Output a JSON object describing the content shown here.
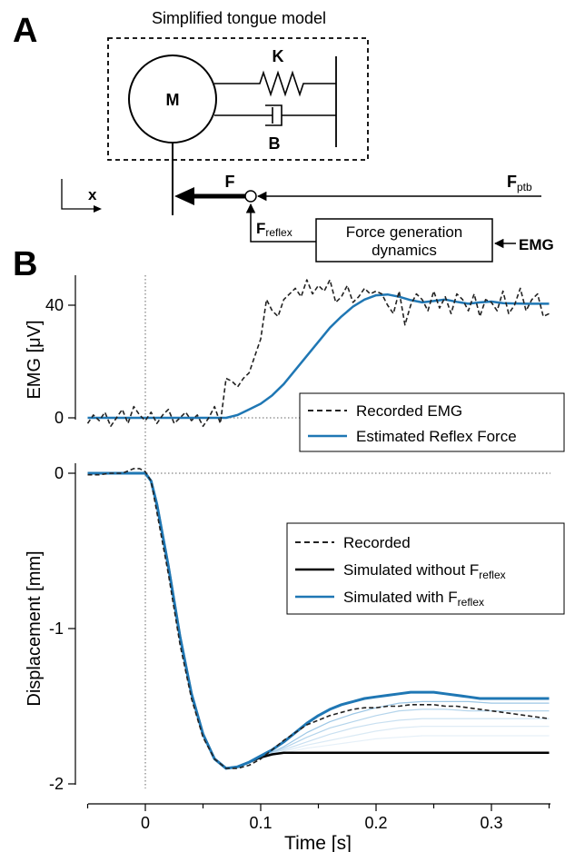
{
  "panel_a": {
    "letter": "A",
    "model_title": "Simplified tongue model",
    "mass_label": "M",
    "spring_label": "K",
    "damper_label": "B",
    "force_label": "F",
    "force_ptb_main": "F",
    "force_ptb_sub": "ptb",
    "force_reflex_main": "F",
    "force_reflex_sub": "reflex",
    "box_line1": "Force generation",
    "box_line2": "dynamics",
    "emg_input": "EMG",
    "axis_label": "x"
  },
  "panel_b": {
    "letter": "B"
  },
  "chart_data": [
    {
      "type": "line",
      "ylabel": "EMG [μV]",
      "yticks": [
        "0",
        "40"
      ],
      "xlim": [
        -0.05,
        0.35
      ],
      "ylim": [
        -6,
        50
      ],
      "legend": {
        "placement": "bottom-right",
        "entries": [
          {
            "label": "Recorded EMG",
            "style": "dashed",
            "color": "#222222"
          },
          {
            "label": "Estimated Reflex Force",
            "style": "solid",
            "color": "#1f77b4"
          }
        ]
      },
      "series": [
        {
          "name": "Recorded EMG",
          "x": [
            -0.05,
            -0.045,
            -0.04,
            -0.035,
            -0.03,
            -0.025,
            -0.02,
            -0.015,
            -0.01,
            -0.005,
            0,
            0.005,
            0.01,
            0.015,
            0.02,
            0.025,
            0.03,
            0.035,
            0.04,
            0.045,
            0.05,
            0.055,
            0.06,
            0.065,
            0.07,
            0.075,
            0.08,
            0.085,
            0.09,
            0.095,
            0.1,
            0.105,
            0.11,
            0.115,
            0.12,
            0.125,
            0.13,
            0.135,
            0.14,
            0.145,
            0.15,
            0.155,
            0.16,
            0.165,
            0.17,
            0.175,
            0.18,
            0.185,
            0.19,
            0.195,
            0.2,
            0.205,
            0.21,
            0.215,
            0.22,
            0.225,
            0.23,
            0.235,
            0.24,
            0.245,
            0.25,
            0.255,
            0.26,
            0.265,
            0.27,
            0.275,
            0.28,
            0.285,
            0.29,
            0.295,
            0.3,
            0.305,
            0.31,
            0.315,
            0.32,
            0.325,
            0.33,
            0.335,
            0.34,
            0.345,
            0.35
          ],
          "values": [
            -2,
            1,
            -1,
            2,
            -3,
            0,
            3,
            -2,
            4,
            1,
            -1,
            2,
            -2,
            1,
            3,
            -2,
            0,
            2,
            -1,
            1,
            -3,
            0,
            4,
            -2,
            14,
            13,
            11,
            14,
            16,
            22,
            28,
            42,
            38,
            36,
            42,
            44,
            46,
            43,
            49,
            44,
            47,
            45,
            49,
            41,
            43,
            47,
            41,
            43,
            46,
            44,
            45,
            44,
            40,
            37,
            45,
            33,
            40,
            44,
            42,
            38,
            45,
            39,
            43,
            37,
            44,
            42,
            38,
            44,
            36,
            42,
            41,
            38,
            45,
            37,
            40,
            46,
            38,
            42,
            44,
            36,
            37
          ]
        },
        {
          "name": "Estimated Reflex Force",
          "x": [
            -0.05,
            -0.03,
            -0.01,
            0,
            0.02,
            0.04,
            0.05,
            0.06,
            0.07,
            0.08,
            0.09,
            0.1,
            0.11,
            0.12,
            0.13,
            0.14,
            0.15,
            0.16,
            0.17,
            0.18,
            0.19,
            0.2,
            0.21,
            0.22,
            0.23,
            0.24,
            0.25,
            0.26,
            0.27,
            0.28,
            0.29,
            0.3,
            0.31,
            0.32,
            0.33,
            0.34,
            0.35
          ],
          "values": [
            0,
            0,
            0,
            0,
            0,
            0,
            0,
            0,
            0,
            1,
            3,
            5,
            8,
            12,
            17,
            22,
            27,
            32,
            36,
            39.5,
            42,
            43.5,
            43.8,
            43,
            41.8,
            41,
            41.5,
            42,
            41.2,
            40.5,
            41,
            41.3,
            40.7,
            40.6,
            40.5,
            40.5,
            40.5
          ]
        }
      ],
      "reference_line": {
        "y": 0,
        "style": "dotted"
      }
    },
    {
      "type": "line",
      "xlabel": "Time [s]",
      "ylabel": "Displacement [mm]",
      "xticks": [
        "0",
        "0.1",
        "0.2",
        "0.3"
      ],
      "yticks": [
        "0",
        "-1",
        "-2"
      ],
      "xlim": [
        -0.05,
        0.35
      ],
      "ylim": [
        -2.0,
        0.05
      ],
      "legend": {
        "placement": "top-right",
        "entries": [
          {
            "label": "Recorded",
            "style": "dashed",
            "color": "#222222"
          },
          {
            "label": "Simulated without F",
            "sub": "reflex",
            "style": "solid",
            "color": "#000000"
          },
          {
            "label": "Simulated with F",
            "sub": "reflex",
            "style": "solid",
            "color": "#1f77b4"
          }
        ]
      },
      "series": [
        {
          "name": "Recorded",
          "x": [
            -0.05,
            -0.04,
            -0.03,
            -0.02,
            -0.01,
            -0.005,
            0,
            0.005,
            0.01,
            0.02,
            0.03,
            0.04,
            0.05,
            0.06,
            0.07,
            0.08,
            0.09,
            0.1,
            0.11,
            0.12,
            0.13,
            0.14,
            0.15,
            0.16,
            0.17,
            0.18,
            0.19,
            0.2,
            0.21,
            0.22,
            0.23,
            0.24,
            0.25,
            0.26,
            0.27,
            0.28,
            0.29,
            0.3,
            0.31,
            0.32,
            0.33,
            0.34,
            0.35
          ],
          "values": [
            -0.01,
            -0.01,
            0,
            0,
            0.03,
            0.03,
            0.01,
            -0.05,
            -0.25,
            -0.65,
            -1.1,
            -1.45,
            -1.7,
            -1.84,
            -1.9,
            -1.9,
            -1.88,
            -1.84,
            -1.78,
            -1.72,
            -1.67,
            -1.62,
            -1.59,
            -1.56,
            -1.54,
            -1.52,
            -1.51,
            -1.51,
            -1.5,
            -1.5,
            -1.49,
            -1.49,
            -1.49,
            -1.5,
            -1.5,
            -1.51,
            -1.52,
            -1.53,
            -1.54,
            -1.55,
            -1.56,
            -1.57,
            -1.58
          ]
        },
        {
          "name": "Simulated without Freflex",
          "x": [
            -0.05,
            -0.02,
            0,
            0.005,
            0.01,
            0.02,
            0.03,
            0.04,
            0.05,
            0.06,
            0.07,
            0.08,
            0.09,
            0.1,
            0.11,
            0.12,
            0.13,
            0.14,
            0.15,
            0.2,
            0.25,
            0.3,
            0.35
          ],
          "values": [
            0,
            0,
            0,
            -0.05,
            -0.2,
            -0.6,
            -1.05,
            -1.42,
            -1.68,
            -1.84,
            -1.9,
            -1.89,
            -1.86,
            -1.83,
            -1.81,
            -1.8,
            -1.8,
            -1.8,
            -1.8,
            -1.8,
            -1.8,
            -1.8,
            -1.8
          ]
        },
        {
          "name": "Simulated with Freflex",
          "x": [
            -0.05,
            -0.02,
            0,
            0.005,
            0.01,
            0.02,
            0.03,
            0.04,
            0.05,
            0.06,
            0.07,
            0.08,
            0.09,
            0.1,
            0.11,
            0.12,
            0.13,
            0.14,
            0.15,
            0.16,
            0.17,
            0.18,
            0.19,
            0.2,
            0.21,
            0.22,
            0.23,
            0.24,
            0.25,
            0.26,
            0.27,
            0.28,
            0.29,
            0.3,
            0.31,
            0.32,
            0.33,
            0.34,
            0.35
          ],
          "values": [
            0,
            0,
            0,
            -0.05,
            -0.2,
            -0.6,
            -1.05,
            -1.42,
            -1.68,
            -1.84,
            -1.9,
            -1.89,
            -1.86,
            -1.82,
            -1.78,
            -1.73,
            -1.67,
            -1.61,
            -1.56,
            -1.52,
            -1.49,
            -1.47,
            -1.45,
            -1.44,
            -1.43,
            -1.42,
            -1.41,
            -1.41,
            -1.41,
            -1.42,
            -1.43,
            -1.44,
            -1.45,
            -1.45,
            -1.45,
            -1.45,
            -1.45,
            -1.45,
            -1.45
          ]
        },
        {
          "name": "",
          "color": "#9dc7e6",
          "x": [
            0.1,
            0.12,
            0.14,
            0.16,
            0.18,
            0.2,
            0.22,
            0.24,
            0.26,
            0.28,
            0.3,
            0.32,
            0.35
          ],
          "values": [
            -1.83,
            -1.76,
            -1.67,
            -1.6,
            -1.55,
            -1.51,
            -1.48,
            -1.47,
            -1.47,
            -1.47,
            -1.48,
            -1.48,
            -1.48
          ]
        },
        {
          "name": "",
          "color": "#b5d5ec",
          "x": [
            0.1,
            0.12,
            0.14,
            0.16,
            0.18,
            0.2,
            0.22,
            0.24,
            0.26,
            0.28,
            0.3,
            0.32,
            0.35
          ],
          "values": [
            -1.83,
            -1.77,
            -1.7,
            -1.64,
            -1.6,
            -1.56,
            -1.53,
            -1.52,
            -1.52,
            -1.53,
            -1.53,
            -1.53,
            -1.53
          ]
        },
        {
          "name": "",
          "color": "#c9e0f1",
          "x": [
            0.1,
            0.12,
            0.14,
            0.16,
            0.18,
            0.2,
            0.22,
            0.24,
            0.26,
            0.28,
            0.3,
            0.32,
            0.35
          ],
          "values": [
            -1.83,
            -1.78,
            -1.73,
            -1.68,
            -1.64,
            -1.61,
            -1.59,
            -1.58,
            -1.58,
            -1.58,
            -1.58,
            -1.58,
            -1.58
          ]
        },
        {
          "name": "",
          "color": "#dbeaf5",
          "x": [
            0.1,
            0.12,
            0.14,
            0.16,
            0.18,
            0.2,
            0.22,
            0.24,
            0.26,
            0.28,
            0.3,
            0.32,
            0.35
          ],
          "values": [
            -1.83,
            -1.79,
            -1.75,
            -1.72,
            -1.69,
            -1.66,
            -1.64,
            -1.63,
            -1.63,
            -1.63,
            -1.63,
            -1.63,
            -1.63
          ]
        },
        {
          "name": "",
          "color": "#e6f0f8",
          "x": [
            0.1,
            0.12,
            0.14,
            0.16,
            0.18,
            0.2,
            0.22,
            0.24,
            0.26,
            0.28,
            0.3,
            0.32,
            0.35
          ],
          "values": [
            -1.83,
            -1.8,
            -1.77,
            -1.75,
            -1.73,
            -1.71,
            -1.7,
            -1.69,
            -1.69,
            -1.69,
            -1.69,
            -1.69,
            -1.69
          ]
        }
      ],
      "reference_line": {
        "y": 0,
        "style": "dotted"
      }
    }
  ]
}
